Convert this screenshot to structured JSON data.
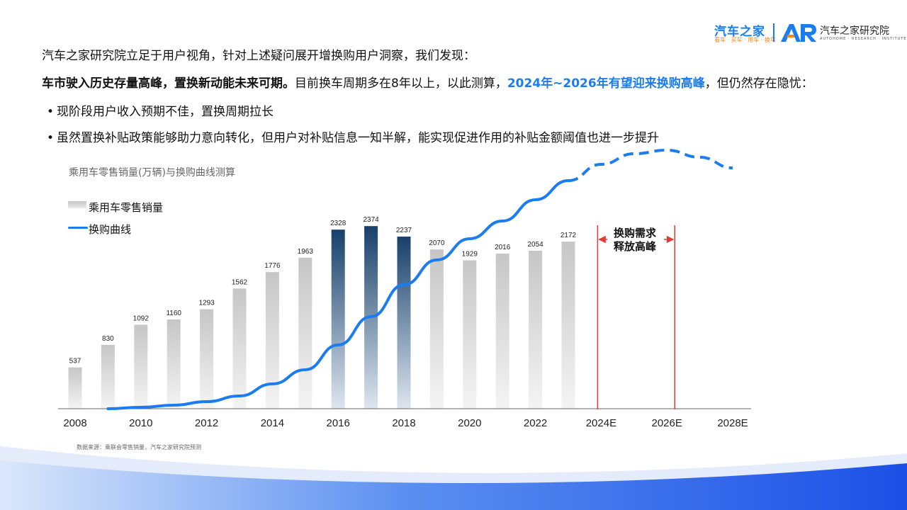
{
  "brand": {
    "logo_main": "汽车之家",
    "logo_sub": "看车 · 买车 · 用车 · 换车",
    "institute_name": "汽车之家研究院",
    "institute_en": "AUTOHOME · RESEARCH · INSTITUTE"
  },
  "text": {
    "intro": "汽车之家研究院立足于用户视角，针对上述疑问展开增换购用户洞察，我们发现：",
    "findings_bold": "车市驶入历史存量高峰，置换新动能未来可期。",
    "findings_mid": "目前换车周期多在8年以上，以此测算，",
    "findings_highlight": "2024年~2026年有望迎来换购高峰",
    "findings_end": "，但仍然存在隐忧：",
    "bullets": [
      "现阶段用户收入预期不佳，置换周期拉长",
      "虽然置换补贴政策能够助力意向转化，但用户对补贴信息一知半解，能实现促进作用的补贴金额阈值也进一步提升"
    ],
    "source": "数据来源：乘联会零售销量，汽车之家研究院预测"
  },
  "chart_data": {
    "type": "bar",
    "title": "乘用车零售销量(万辆)与换购曲线测算",
    "legend": [
      "乘用车零售销量",
      "换购曲线"
    ],
    "x_ticks": [
      "2008",
      "2010",
      "2012",
      "2014",
      "2016",
      "2018",
      "2020",
      "2022",
      "2024E",
      "2026E",
      "2028E"
    ],
    "categories": [
      2008,
      2009,
      2010,
      2011,
      2012,
      2013,
      2014,
      2015,
      2016,
      2017,
      2018,
      2019,
      2020,
      2021,
      2022,
      2023
    ],
    "values": [
      537,
      830,
      1092,
      1160,
      1293,
      1562,
      1776,
      1963,
      2328,
      2374,
      2237,
      2070,
      1929,
      2016,
      2054,
      2172
    ],
    "highlight_years": [
      2016,
      2017,
      2018
    ],
    "colors": {
      "bar_gray_top": "#c6c6c6",
      "bar_gray_bottom": "#f4f4f4",
      "bar_dark_top": "#17406a",
      "bar_dark_bottom": "#dde6ef",
      "curve": "#1a7cf0",
      "peak_marker": "#e53935"
    },
    "curve": {
      "solid": [
        [
          2009,
          0
        ],
        [
          2010,
          2
        ],
        [
          2011,
          5
        ],
        [
          2012,
          10
        ],
        [
          2013,
          18
        ],
        [
          2014,
          35
        ],
        [
          2015,
          55
        ],
        [
          2016,
          90
        ],
        [
          2017,
          130
        ],
        [
          2018,
          175
        ],
        [
          2019,
          210
        ],
        [
          2020,
          240
        ],
        [
          2021,
          265
        ],
        [
          2022,
          295
        ],
        [
          2023,
          322
        ]
      ],
      "dashed": [
        [
          2023,
          322
        ],
        [
          2024,
          345
        ],
        [
          2025,
          360
        ],
        [
          2026,
          365
        ],
        [
          2027,
          355
        ],
        [
          2028,
          340
        ]
      ]
    },
    "peak_range": [
      "2024E",
      "2026E"
    ],
    "annotation": [
      "换购需求",
      "释放高峰"
    ]
  }
}
